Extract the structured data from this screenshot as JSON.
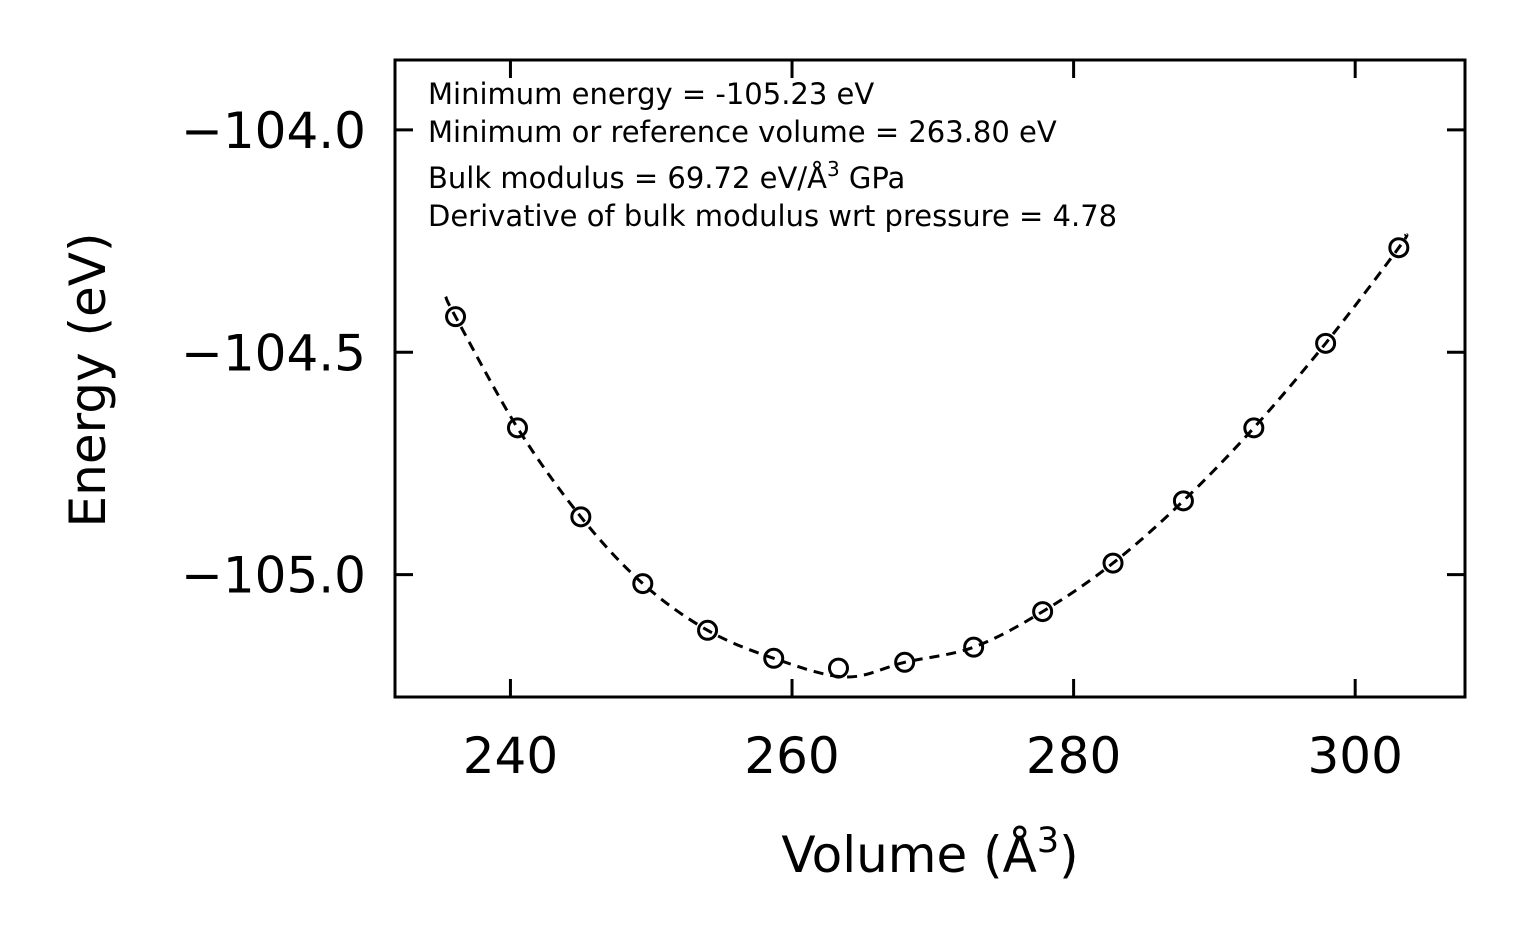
{
  "chart_data": {
    "type": "scatter",
    "title": "",
    "xlabel": {
      "base": "Volume (Å",
      "sup": "3",
      "tail": ")"
    },
    "ylabel": "Energy (eV)",
    "xlim": [
      231.8,
      307.8
    ],
    "ylim": [
      -105.275,
      -103.843
    ],
    "xticks": [
      240,
      260,
      280,
      300
    ],
    "xtick_labels": [
      "240",
      "260",
      "280",
      "300"
    ],
    "yticks": [
      -104.0,
      -104.5,
      -105.0
    ],
    "ytick_labels": [
      "−104.0",
      "−104.5",
      "−105.0"
    ],
    "series": [
      {
        "name": "data points",
        "marker": "open-circle",
        "x": [
          236.1,
          240.5,
          245.0,
          249.4,
          254.0,
          258.7,
          263.3,
          268.0,
          272.9,
          277.8,
          282.8,
          287.8,
          292.8,
          297.9,
          303.1
        ],
        "y": [
          -104.42,
          -104.67,
          -104.87,
          -105.02,
          -105.125,
          -105.188,
          -105.21,
          -105.197,
          -105.163,
          -105.083,
          -104.974,
          -104.834,
          -104.67,
          -104.48,
          -104.265
        ]
      },
      {
        "name": "fit",
        "style": "dashed-line",
        "x": [
          235.4,
          236.1,
          240.5,
          245.0,
          249.4,
          254.0,
          258.7,
          263.8,
          268.0,
          272.9,
          277.8,
          282.8,
          287.8,
          292.8,
          297.9,
          303.1,
          303.6
        ],
        "y": [
          -104.375,
          -104.42,
          -104.67,
          -104.87,
          -105.02,
          -105.125,
          -105.188,
          -105.23,
          -105.197,
          -105.163,
          -105.083,
          -104.974,
          -104.834,
          -104.67,
          -104.48,
          -104.265,
          -104.235
        ]
      }
    ],
    "annotations": {
      "line1": "Minimum energy = -105.23 eV",
      "line2": "Minimum or reference volume = 263.80 eV",
      "line3_base": "Bulk modulus = 69.72 eV/Å",
      "line3_sup": "3",
      "line3_tail": " GPa",
      "line4": "Derivative of bulk modulus wrt pressure = 4.78"
    }
  }
}
